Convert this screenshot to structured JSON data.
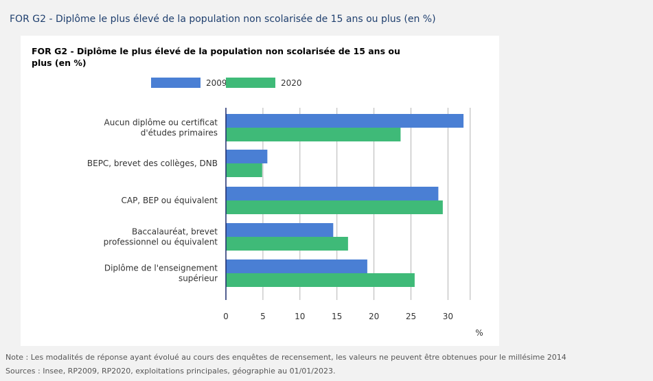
{
  "page": {
    "title": "FOR G2 - Diplôme le plus élevé de la population non scolarisée de 15 ans ou plus (en %)",
    "note": "Note : Les modalités de réponse ayant évolué au cours des enquêtes de recensement, les valeurs ne peuvent être obtenues pour le millésime 2014",
    "sources": "Sources : Insee, RP2009, RP2020, exploitations principales, géographie au 01/01/2023."
  },
  "chart_data": {
    "type": "bar",
    "orientation": "horizontal",
    "title_lines": [
      "FOR G2 - Diplôme le plus élevé de la population non scolarisée de 15 ans ou",
      "plus (en %)"
    ],
    "categories": [
      [
        "Aucun diplôme ou certificat",
        "d'études primaires"
      ],
      [
        "BEPC, brevet des collèges, DNB"
      ],
      [
        "CAP, BEP ou équivalent"
      ],
      [
        "Baccalauréat, brevet",
        "professionnel ou équivalent"
      ],
      [
        "Diplôme de l'enseignement",
        "supérieur"
      ]
    ],
    "series": [
      {
        "name": "2009",
        "color": "#4a7fd4",
        "values": [
          32.1,
          5.6,
          28.7,
          14.5,
          19.1
        ]
      },
      {
        "name": "2020",
        "color": "#3fba78",
        "values": [
          23.6,
          4.9,
          29.3,
          16.5,
          25.5
        ]
      }
    ],
    "xlabel": "%",
    "xlim": [
      0,
      33
    ],
    "xticks": [
      0,
      5,
      10,
      15,
      20,
      25,
      30
    ],
    "grid": true,
    "legend_position": "top"
  }
}
